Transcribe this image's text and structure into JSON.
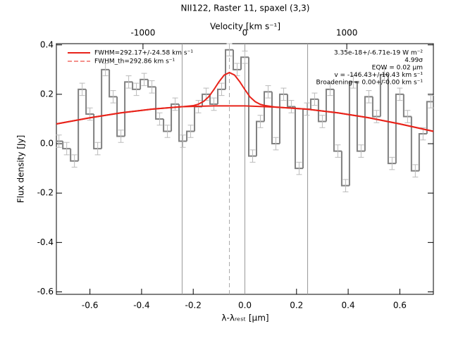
{
  "chart_data": {
    "type": "step",
    "title": "NII122, Raster 11, spaxel (3,3)",
    "xlabel": "λ-λᵣₑₛₜ [µm]",
    "ylabel": "Flux density [Jy]",
    "x2label": "Velocity [km s⁻¹]",
    "xlim": [
      -0.73,
      0.73
    ],
    "ylim": [
      -0.61,
      0.405
    ],
    "x2lim": [
      -1850,
      1850
    ],
    "xticks": [
      -0.6,
      -0.4,
      -0.2,
      {
        "value": 0,
        "label": "0.0"
      },
      0.2,
      0.4,
      0.6
    ],
    "yticks": [
      -0.6,
      -0.4,
      -0.2,
      {
        "value": 0,
        "label": "0.0"
      },
      0.2,
      0.4
    ],
    "x2ticks": [
      -1000,
      0,
      1000
    ],
    "vlines": [
      -0.243,
      0,
      0.243
    ],
    "center_line": -0.06,
    "x": [
      -0.72,
      -0.69,
      -0.66,
      -0.63,
      -0.6,
      -0.57,
      -0.54,
      -0.51,
      -0.48,
      -0.45,
      -0.42,
      -0.39,
      -0.36,
      -0.33,
      -0.3,
      -0.27,
      -0.24,
      -0.21,
      -0.18,
      -0.15,
      -0.12,
      -0.09,
      -0.06,
      -0.03,
      0,
      0.03,
      0.06,
      0.09,
      0.12,
      0.15,
      0.18,
      0.21,
      0.24,
      0.27,
      0.3,
      0.33,
      0.36,
      0.39,
      0.42,
      0.45,
      0.48,
      0.51,
      0.54,
      0.57,
      0.6,
      0.63,
      0.66,
      0.69,
      0.72
    ],
    "series": [
      {
        "color": "#808080",
        "yerr": 0.025,
        "values": [
          0.01,
          -0.02,
          -0.07,
          0.22,
          0.12,
          -0.02,
          0.3,
          0.19,
          0.03,
          0.25,
          0.22,
          0.26,
          0.23,
          0.1,
          0.05,
          0.16,
          0.01,
          0.05,
          0.15,
          0.2,
          0.16,
          0.22,
          0.38,
          0.3,
          0.35,
          -0.05,
          0.09,
          0.21,
          0,
          0.2,
          0.15,
          -0.1,
          0.14,
          0.18,
          0.09,
          0.22,
          -0.03,
          -0.17,
          0.25,
          -0.03,
          0.19,
          0.11,
          0.28,
          -0.08,
          0.2,
          0.11,
          -0.11,
          0.04,
          0.17
        ]
      },
      {
        "name": "FWHM=292.17+/-24.58 km s⁻¹",
        "color": "#e8231a",
        "x": [
          -0.73,
          -0.6,
          -0.48,
          -0.36,
          -0.24,
          -0.2,
          -0.18,
          -0.16,
          -0.14,
          -0.12,
          -0.1,
          -0.08,
          -0.06,
          -0.04,
          -0.02,
          0,
          0.02,
          0.04,
          0.06,
          0.08,
          0.12,
          0.24,
          0.36,
          0.48,
          0.6,
          0.73
        ],
        "values": [
          0.08,
          0.105,
          0.125,
          0.14,
          0.15,
          0.154,
          0.16,
          0.171,
          0.19,
          0.219,
          0.251,
          0.278,
          0.288,
          0.278,
          0.251,
          0.219,
          0.189,
          0.17,
          0.159,
          0.154,
          0.148,
          0.14,
          0.125,
          0.105,
          0.08,
          0.05
        ]
      },
      {
        "name": "FWHM_th=292.86 km s⁻¹",
        "color": "#e8231a",
        "x": [
          -0.73,
          -0.6,
          -0.48,
          -0.36,
          -0.24,
          -0.12,
          0,
          0.12,
          0.24,
          0.36,
          0.48,
          0.6,
          0.73
        ],
        "values": [
          0.08,
          0.105,
          0.125,
          0.14,
          0.15,
          0.153,
          0.153,
          0.148,
          0.14,
          0.125,
          0.105,
          0.08,
          0.05
        ]
      }
    ],
    "annotations": [
      "3.35e-18+/-6.71e-19 W m⁻²",
      "4.99σ",
      "EQW = 0.02 µm",
      "v = -146.43+/-10.43 km s⁻¹",
      "Broadening = 0.00+/-0.00 km s⁻¹"
    ]
  }
}
